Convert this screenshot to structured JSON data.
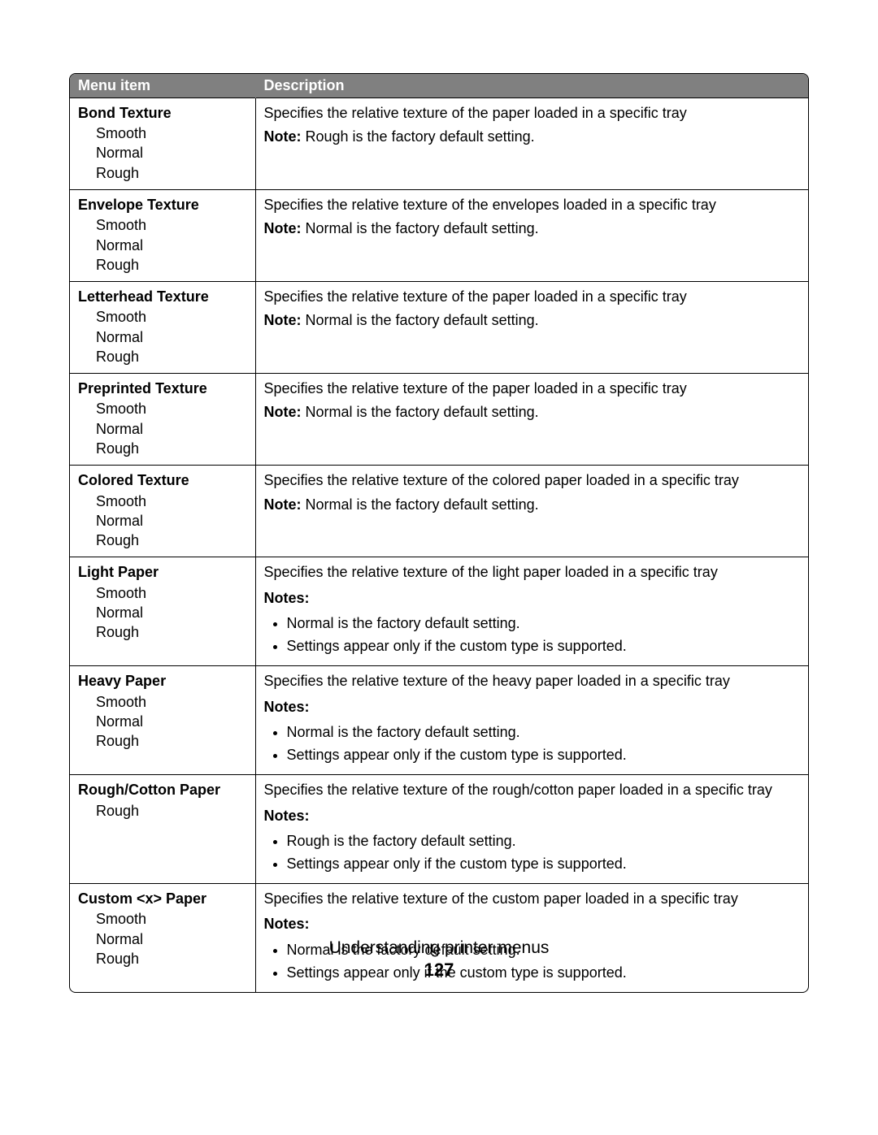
{
  "table": {
    "headers": {
      "col1": "Menu item",
      "col2": "Description"
    },
    "rows": [
      {
        "title": "Bond Texture",
        "options": [
          "Smooth",
          "Normal",
          "Rough"
        ],
        "desc_line": "Specifies the relative texture of the paper loaded in a specific tray",
        "note_inline": {
          "label": "Note:",
          "text": " Rough is the factory default setting."
        }
      },
      {
        "title": "Envelope Texture",
        "options": [
          "Smooth",
          "Normal",
          "Rough"
        ],
        "desc_line": "Specifies the relative texture of the envelopes loaded in a specific tray",
        "note_inline": {
          "label": "Note:",
          "text": " Normal is the factory default setting."
        }
      },
      {
        "title": "Letterhead Texture",
        "options": [
          "Smooth",
          "Normal",
          "Rough"
        ],
        "desc_line": "Specifies the relative texture of the paper loaded in a specific tray",
        "note_inline": {
          "label": "Note:",
          "text": " Normal is the factory default setting."
        }
      },
      {
        "title": "Preprinted Texture",
        "options": [
          "Smooth",
          "Normal",
          "Rough"
        ],
        "desc_line": "Specifies the relative texture of the paper loaded in a specific tray",
        "note_inline": {
          "label": "Note:",
          "text": " Normal is the factory default setting."
        }
      },
      {
        "title": "Colored Texture",
        "options": [
          "Smooth",
          "Normal",
          "Rough"
        ],
        "desc_line": "Specifies the relative texture of the colored paper loaded in a specific tray",
        "note_inline": {
          "label": "Note:",
          "text": " Normal is the factory default setting."
        }
      },
      {
        "title": "Light Paper",
        "options": [
          "Smooth",
          "Normal",
          "Rough"
        ],
        "desc_line": "Specifies the relative texture of the light paper loaded in a specific tray",
        "notes_label": "Notes:",
        "notes": [
          "Normal is the factory default setting.",
          "Settings appear only if the custom type is supported."
        ]
      },
      {
        "title": "Heavy Paper",
        "options": [
          "Smooth",
          "Normal",
          "Rough"
        ],
        "desc_line": "Specifies the relative texture of the heavy paper loaded in a specific tray",
        "notes_label": "Notes:",
        "notes": [
          "Normal is the factory default setting.",
          "Settings appear only if the custom type is supported."
        ]
      },
      {
        "title": "Rough/Cotton Paper",
        "options": [
          "Rough"
        ],
        "desc_line": "Specifies the relative texture of the rough/cotton paper loaded in a specific tray",
        "notes_label": "Notes:",
        "notes": [
          "Rough is the factory default setting.",
          "Settings appear only if the custom type is supported."
        ]
      },
      {
        "title": "Custom <x> Paper",
        "options": [
          "Smooth",
          "Normal",
          "Rough"
        ],
        "desc_line": "Specifies the relative texture of the custom paper loaded in a specific tray",
        "notes_label": "Notes:",
        "notes": [
          "Normal is the factory default setting.",
          "Settings appear only if the custom type is supported."
        ]
      }
    ]
  },
  "footer": {
    "title": "Understanding printer menus",
    "page": "127"
  }
}
